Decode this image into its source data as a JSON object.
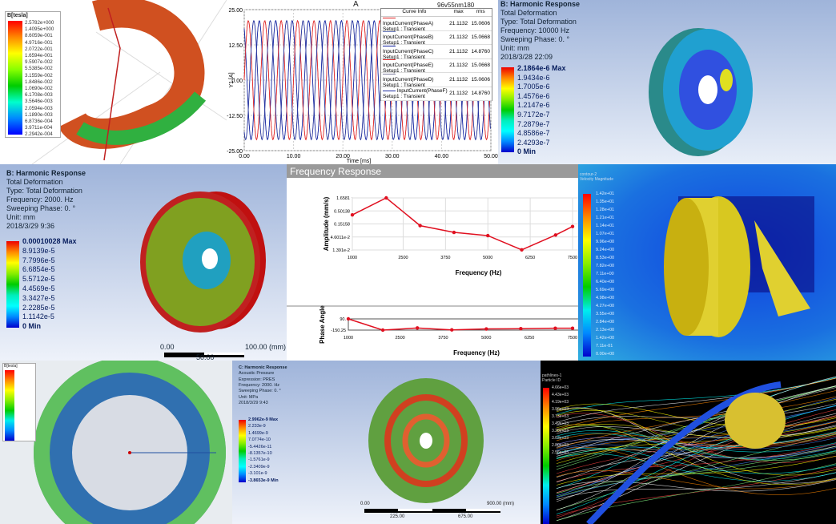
{
  "panel1": {
    "legend_title": "B[tesla]",
    "legend": [
      "2.5782e+000",
      "1.4095e+000",
      "8.6059e-001",
      "4.9716e-001",
      "2.0722e-001",
      "1.6594e-001",
      "9.5907e-002",
      "5.5385e-002",
      "3.1559e-002",
      "1.8486e-002",
      "1.0690e-002",
      "6.1708e-003",
      "3.5646e-003",
      "2.0594e-003",
      "1.1890e-003",
      "6.8736e-004",
      "3.9711e-004",
      "2.2942e-004"
    ]
  },
  "panel2": {
    "title": "A",
    "project": "96v55nm180",
    "ylabel": "Y1 [A]",
    "xlabel": "Time [ms]",
    "yticks": [
      "25.00",
      "12.50",
      "0.00",
      "-12.50",
      "-25.00"
    ],
    "xticks": [
      "0.00",
      "10.00",
      "20.00",
      "30.00",
      "40.00",
      "50.00"
    ],
    "table_headers": [
      "Curve Info",
      "max",
      "rms"
    ],
    "curves": [
      {
        "name": "InputCurrent(PhaseA)",
        "setup": "Setup1 : Transient",
        "max": "21.1132",
        "rms": "15.0606",
        "color": "#e02020"
      },
      {
        "name": "InputCurrent(PhaseB)",
        "setup": "Setup1 : Transient",
        "max": "21.1132",
        "rms": "15.0668",
        "color": "#7080c0"
      },
      {
        "name": "InputCurrent(PhaseC)",
        "setup": "Setup1 : Transient",
        "max": "21.1132",
        "rms": "14.8760",
        "color": "#1020a0"
      },
      {
        "name": "InputCurrent(PhaseE)",
        "setup": "Setup1 : Transient",
        "max": "21.1132",
        "rms": "15.0668",
        "color": "#e03030"
      },
      {
        "name": "InputCurrent(PhaseD)",
        "setup": "Setup1 : Transient",
        "max": "21.1132",
        "rms": "15.0606",
        "color": "#8080a0"
      },
      {
        "name": "InputCurrent(PhaseF)",
        "setup": "Setup1 : Transient",
        "max": "21.1132",
        "rms": "14.8760",
        "color": "#2030a0"
      }
    ]
  },
  "panel3": {
    "lines": [
      "B: Harmonic Response",
      "Total Deformation",
      "Type: Total Deformation",
      "Frequency: 10000 Hz",
      "Sweeping Phase: 0. °",
      "Unit: mm",
      "2018/3/28 22:09"
    ],
    "legend": [
      "2.1864e-6 Max",
      "1.9434e-6",
      "1.7005e-6",
      "1.4576e-6",
      "1.2147e-6",
      "9.7172e-7",
      "7.2879e-7",
      "4.8586e-7",
      "2.4293e-7",
      "0 Min"
    ]
  },
  "panel4": {
    "lines": [
      "B: Harmonic Response",
      "Total Deformation",
      "Type: Total Deformation",
      "Frequency: 2000. Hz",
      "Sweeping Phase: 0. °",
      "Unit: mm",
      "2018/3/29 9:36"
    ],
    "legend": [
      "0.00010028 Max",
      "8.9139e-5",
      "7.7996e-5",
      "6.6854e-5",
      "5.5712e-5",
      "4.4569e-5",
      "3.3427e-5",
      "2.2285e-5",
      "1.1142e-5",
      "0 Min"
    ],
    "scale": [
      "0.00",
      "100.00 (mm)",
      "50.00"
    ]
  },
  "panel5": {
    "header": "Frequency Response",
    "chart_data": [
      {
        "type": "line",
        "xlabel": "Frequency (Hz)",
        "ylabel": "Amplitude (mm/s)",
        "yscale": "log",
        "grid": true,
        "xlim": [
          1000,
          7500
        ],
        "xticks": [
          "1000",
          "2500",
          "3750",
          "5000",
          "6250",
          "7500"
        ],
        "yticks": [
          "1.6581",
          "0.50138",
          "0.15158",
          "4.6011e-2",
          "1.391e-2"
        ],
        "ylim": [
          0.01391,
          1.6581
        ],
        "x": [
          1000,
          2000,
          3000,
          4000,
          5000,
          6000,
          7000,
          7500
        ],
        "y": [
          0.35,
          1.6581,
          0.13,
          0.07,
          0.052,
          0.0141,
          0.055,
          0.12
        ]
      },
      {
        "type": "line",
        "xlabel": "Frequency (Hz)",
        "ylabel": "Phase Angle",
        "grid": false,
        "xlim": [
          1000,
          7500
        ],
        "xticks": [
          "1000",
          "2500",
          "3750",
          "5000",
          "6250",
          "7500"
        ],
        "yticks": [
          "90.",
          "-150.25"
        ],
        "ylim": [
          -150.25,
          90
        ],
        "x": [
          1000,
          2000,
          3000,
          4000,
          5000,
          6000,
          7000,
          7500
        ],
        "y": [
          90,
          -150.25,
          -105,
          -145,
          -125,
          -120,
          -110,
          -110
        ]
      }
    ]
  },
  "panel6": {
    "lines": [
      "contour-2",
      "Velocity Magnitude"
    ],
    "legend": [
      "1.42e+01",
      "1.35e+01",
      "1.28e+01",
      "1.21e+01",
      "1.14e+01",
      "1.07e+01",
      "9.96e+00",
      "9.24e+00",
      "8.53e+00",
      "7.82e+00",
      "7.11e+00",
      "6.40e+00",
      "5.69e+00",
      "4.98e+00",
      "4.27e+00",
      "3.55e+00",
      "2.84e+00",
      "2.13e+00",
      "1.42e+00",
      "7.11e-01",
      "0.00e+00"
    ]
  },
  "panel7": {
    "legend_title": "B[tesla]"
  },
  "panel8": {
    "lines": [
      "C: Harmonic Response",
      "Acoustic Pressure",
      "Expression: PRES",
      "Frequency: 2000. Hz",
      "Sweeping Phase: 0. °",
      "Unit: MPa",
      "2018/3/29 9:43"
    ],
    "legend": [
      "2.9962e-9 Max",
      "2.233e-9",
      "1.4699e-9",
      "7.0774e-10",
      "-5.4426e-11",
      "-8.1357e-10",
      "-1.5761e-9",
      "-2.3409e-9",
      "-3.101e-9",
      "-3.8653e-9 Min"
    ],
    "scale": [
      "0.00",
      "900.00 (mm)",
      "225.00",
      "675.00"
    ]
  },
  "panel9": {
    "lines": [
      "pathlines-1",
      "Particle ID"
    ],
    "legend": [
      "4.66e+03",
      "4.43e+03",
      "4.19e+03",
      "3.96e+03",
      "3.73e+03",
      "3.49e+03",
      "3.26e+03",
      "3.03e+03",
      "2.80e+03",
      "2.56e+03"
    ]
  }
}
